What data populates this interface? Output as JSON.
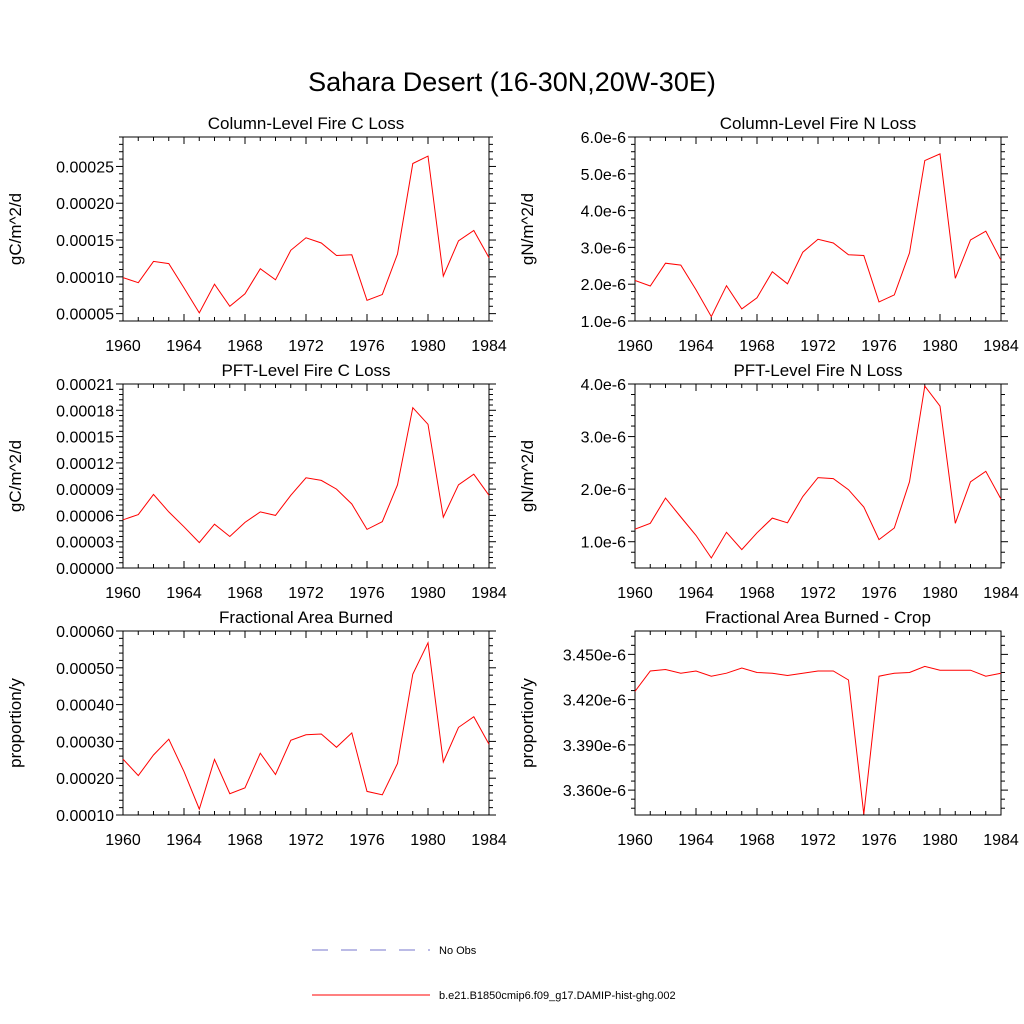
{
  "page_title": "Sahara Desert (16-30N,20W-30E)",
  "legend": [
    {
      "label": "No Obs",
      "color": "#7777cc",
      "dash": true
    },
    {
      "label": "b.e21.B1850cmip6.f09_g17.DAMIP-hist-ghg.002",
      "color": "#ff0000",
      "dash": false
    }
  ],
  "chart_data": [
    {
      "type": "line",
      "title": "Column-Level Fire C Loss",
      "ylabel": "gC/m^2/d",
      "xlim": [
        1960,
        1984
      ],
      "ylim": [
        4e-05,
        0.00029
      ],
      "xticks": [
        1960,
        1964,
        1968,
        1972,
        1976,
        1980,
        1984
      ],
      "xtick_labels": [
        "1960",
        "1964",
        "1968",
        "1972",
        "1976",
        "1980",
        "1984"
      ],
      "yticks": [
        5e-05,
        0.0001,
        0.00015,
        0.0002,
        0.00025
      ],
      "ytick_labels": [
        "0.00005",
        "0.00010",
        "0.00015",
        "0.00020",
        "0.00025"
      ],
      "x": [
        1960,
        1961,
        1962,
        1963,
        1964,
        1965,
        1966,
        1967,
        1968,
        1969,
        1970,
        1971,
        1972,
        1973,
        1974,
        1975,
        1976,
        1977,
        1978,
        1979,
        1980,
        1981,
        1982,
        1983,
        1984
      ],
      "values": [
        9.9e-05,
        9.2e-05,
        0.000121,
        0.000118,
        8.5e-05,
        5.1e-05,
        9e-05,
        6e-05,
        7.7e-05,
        0.000111,
        9.6e-05,
        0.000136,
        0.000153,
        0.000146,
        0.000129,
        0.00013,
        6.8e-05,
        7.6e-05,
        0.000131,
        0.000254,
        0.000264,
        0.000101,
        0.000149,
        0.000163,
        0.000126
      ]
    },
    {
      "type": "line",
      "title": "Column-Level Fire N Loss",
      "ylabel": "gN/m^2/d",
      "xlim": [
        1960,
        1984
      ],
      "ylim": [
        1e-06,
        6e-06
      ],
      "xticks": [
        1960,
        1964,
        1968,
        1972,
        1976,
        1980,
        1984
      ],
      "xtick_labels": [
        "1960",
        "1964",
        "1968",
        "1972",
        "1976",
        "1980",
        "1984"
      ],
      "yticks": [
        1e-06,
        2e-06,
        3e-06,
        4e-06,
        5e-06,
        6e-06
      ],
      "ytick_labels": [
        "1.0e-6",
        "2.0e-6",
        "3.0e-6",
        "4.0e-6",
        "5.0e-6",
        "6.0e-6"
      ],
      "x": [
        1960,
        1961,
        1962,
        1963,
        1964,
        1965,
        1966,
        1967,
        1968,
        1969,
        1970,
        1971,
        1972,
        1973,
        1974,
        1975,
        1976,
        1977,
        1978,
        1979,
        1980,
        1981,
        1982,
        1983,
        1984
      ],
      "values": [
        2.1e-06,
        1.95e-06,
        2.57e-06,
        2.52e-06,
        1.85e-06,
        1.12e-06,
        1.96e-06,
        1.33e-06,
        1.63e-06,
        2.34e-06,
        2.01e-06,
        2.87e-06,
        3.22e-06,
        3.12e-06,
        2.8e-06,
        2.78e-06,
        1.52e-06,
        1.71e-06,
        2.85e-06,
        5.36e-06,
        5.54e-06,
        2.16e-06,
        3.2e-06,
        3.44e-06,
        2.65e-06
      ]
    },
    {
      "type": "line",
      "title": "PFT-Level Fire C Loss",
      "ylabel": "gC/m^2/d",
      "xlim": [
        1960,
        1984
      ],
      "ylim": [
        0.0,
        0.00021
      ],
      "xticks": [
        1960,
        1964,
        1968,
        1972,
        1976,
        1980,
        1984
      ],
      "xtick_labels": [
        "1960",
        "1964",
        "1968",
        "1972",
        "1976",
        "1980",
        "1984"
      ],
      "yticks": [
        0.0,
        3e-05,
        6e-05,
        9e-05,
        0.00012,
        0.00015,
        0.00018,
        0.00021
      ],
      "ytick_labels": [
        "0.00000",
        "0.00003",
        "0.00006",
        "0.00009",
        "0.00012",
        "0.00015",
        "0.00018",
        "0.00021"
      ],
      "x": [
        1960,
        1961,
        1962,
        1963,
        1964,
        1965,
        1966,
        1967,
        1968,
        1969,
        1970,
        1971,
        1972,
        1973,
        1974,
        1975,
        1976,
        1977,
        1978,
        1979,
        1980,
        1981,
        1982,
        1983,
        1984
      ],
      "values": [
        5.5e-05,
        6.1e-05,
        8.4e-05,
        6.4e-05,
        4.7e-05,
        2.9e-05,
        5e-05,
        3.6e-05,
        5.2e-05,
        6.4e-05,
        6e-05,
        8.3e-05,
        0.000103,
        0.0001,
        9e-05,
        7.3e-05,
        4.4e-05,
        5.3e-05,
        9.5e-05,
        0.000183,
        0.000164,
        5.8e-05,
        9.5e-05,
        0.000107,
        8.3e-05
      ]
    },
    {
      "type": "line",
      "title": "PFT-Level Fire N Loss",
      "ylabel": "gN/m^2/d",
      "xlim": [
        1960,
        1984
      ],
      "ylim": [
        5e-07,
        4e-06
      ],
      "xticks": [
        1960,
        1964,
        1968,
        1972,
        1976,
        1980,
        1984
      ],
      "xtick_labels": [
        "1960",
        "1964",
        "1968",
        "1972",
        "1976",
        "1980",
        "1984"
      ],
      "yticks": [
        1e-06,
        2e-06,
        3e-06,
        4e-06
      ],
      "ytick_labels": [
        "1.0e-6",
        "2.0e-6",
        "3.0e-6",
        "4.0e-6"
      ],
      "x": [
        1960,
        1961,
        1962,
        1963,
        1964,
        1965,
        1966,
        1967,
        1968,
        1969,
        1970,
        1971,
        1972,
        1973,
        1974,
        1975,
        1976,
        1977,
        1978,
        1979,
        1980,
        1981,
        1982,
        1983,
        1984
      ],
      "values": [
        1.24e-06,
        1.35e-06,
        1.83e-06,
        1.47e-06,
        1.12e-06,
        6.9e-07,
        1.18e-06,
        8.5e-07,
        1.17e-06,
        1.45e-06,
        1.36e-06,
        1.86e-06,
        2.22e-06,
        2.2e-06,
        1.99e-06,
        1.66e-06,
        1.04e-06,
        1.26e-06,
        2.14e-06,
        3.96e-06,
        3.58e-06,
        1.35e-06,
        2.14e-06,
        2.34e-06,
        1.81e-06
      ]
    },
    {
      "type": "line",
      "title": "Fractional Area Burned",
      "ylabel": "proportion/y",
      "xlim": [
        1960,
        1984
      ],
      "ylim": [
        0.0001,
        0.0006
      ],
      "xticks": [
        1960,
        1964,
        1968,
        1972,
        1976,
        1980,
        1984
      ],
      "xtick_labels": [
        "1960",
        "1964",
        "1968",
        "1972",
        "1976",
        "1980",
        "1984"
      ],
      "yticks": [
        0.0001,
        0.0002,
        0.0003,
        0.0004,
        0.0005,
        0.0006
      ],
      "ytick_labels": [
        "0.00010",
        "0.00020",
        "0.00030",
        "0.00040",
        "0.00050",
        "0.00060"
      ],
      "x": [
        1960,
        1961,
        1962,
        1963,
        1964,
        1965,
        1966,
        1967,
        1968,
        1969,
        1970,
        1971,
        1972,
        1973,
        1974,
        1975,
        1976,
        1977,
        1978,
        1979,
        1980,
        1981,
        1982,
        1983,
        1984
      ],
      "values": [
        0.000252,
        0.000207,
        0.000263,
        0.000306,
        0.000218,
        0.000116,
        0.000251,
        0.000158,
        0.000174,
        0.000268,
        0.00021,
        0.000303,
        0.000318,
        0.00032,
        0.000284,
        0.000323,
        0.000164,
        0.000155,
        0.00024,
        0.000483,
        0.000568,
        0.000244,
        0.000338,
        0.000367,
        0.000292
      ]
    },
    {
      "type": "line",
      "title": "Fractional Area Burned - Crop",
      "ylabel": "proportion/y",
      "xlim": [
        1960,
        1984
      ],
      "ylim": [
        3.3435e-06,
        3.4655e-06
      ],
      "xticks": [
        1960,
        1964,
        1968,
        1972,
        1976,
        1980,
        1984
      ],
      "xtick_labels": [
        "1960",
        "1964",
        "1968",
        "1972",
        "1976",
        "1980",
        "1984"
      ],
      "yticks": [
        3.36e-06,
        3.39e-06,
        3.42e-06,
        3.45e-06
      ],
      "ytick_labels": [
        "3.360e-6",
        "3.390e-6",
        "3.420e-6",
        "3.450e-6"
      ],
      "x": [
        1960,
        1961,
        1962,
        1963,
        1964,
        1965,
        1966,
        1967,
        1968,
        1969,
        1970,
        1971,
        1972,
        1973,
        1974,
        1975,
        1976,
        1977,
        1978,
        1979,
        1980,
        1981,
        1982,
        1983,
        1984
      ],
      "values": [
        3.4255e-06,
        3.439e-06,
        3.44e-06,
        3.4375e-06,
        3.439e-06,
        3.4355e-06,
        3.4375e-06,
        3.441e-06,
        3.438e-06,
        3.4375e-06,
        3.436e-06,
        3.4375e-06,
        3.439e-06,
        3.439e-06,
        3.433e-06,
        3.344e-06,
        3.4355e-06,
        3.4375e-06,
        3.438e-06,
        3.442e-06,
        3.4395e-06,
        3.4395e-06,
        3.4395e-06,
        3.4355e-06,
        3.4375e-06
      ]
    }
  ]
}
